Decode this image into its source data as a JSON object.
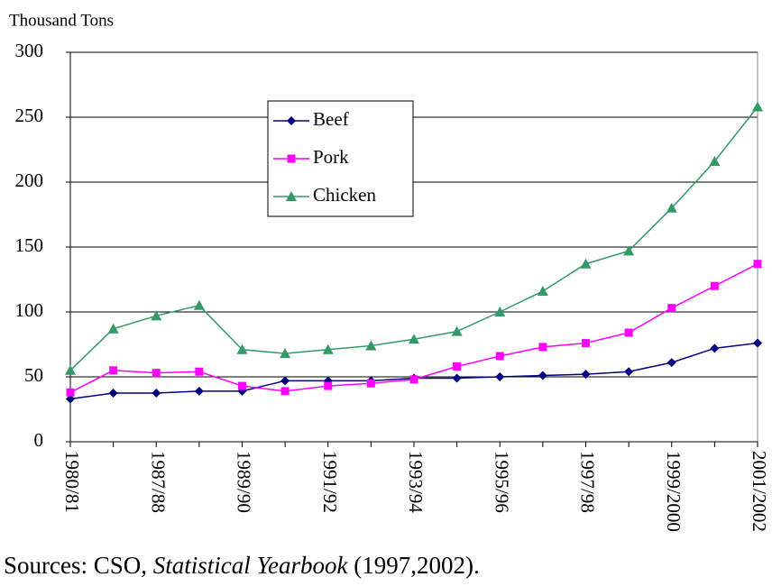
{
  "chart_data": {
    "type": "line",
    "y_label": "Thousand Tons",
    "categories": [
      "1980/81",
      null,
      "1987/88",
      null,
      "1989/90",
      null,
      "1991/92",
      null,
      "1993/94",
      null,
      "1995/96",
      null,
      "1997/98",
      null,
      "1999/2000",
      null,
      "2001/2002"
    ],
    "series": [
      {
        "name": "Beef",
        "color": "#000080",
        "marker": "diamond",
        "values": [
          33,
          37.5,
          37.5,
          39,
          39,
          47,
          47,
          47,
          49,
          49,
          50,
          51,
          52,
          54,
          61,
          72,
          76
        ]
      },
      {
        "name": "Pork",
        "color": "#ff00ff",
        "marker": "square",
        "values": [
          38,
          55,
          53,
          54,
          43,
          39,
          43,
          45,
          48,
          58,
          66,
          73,
          76,
          84,
          103,
          120,
          137
        ]
      },
      {
        "name": "Chicken",
        "color": "#339966",
        "marker": "triangle",
        "values": [
          55,
          87,
          97,
          105,
          71,
          68,
          71,
          74,
          79,
          85,
          100,
          116,
          137,
          147,
          180,
          216,
          258
        ]
      }
    ],
    "ylim": [
      0,
      300
    ],
    "yticks": [
      0,
      50,
      100,
      150,
      200,
      250,
      300
    ],
    "grid": true,
    "legend": "top-center",
    "source": {
      "prefix": "Sources: CSO, ",
      "title": "Statistical Yearbook",
      "suffix": " (1997,2002)."
    }
  }
}
